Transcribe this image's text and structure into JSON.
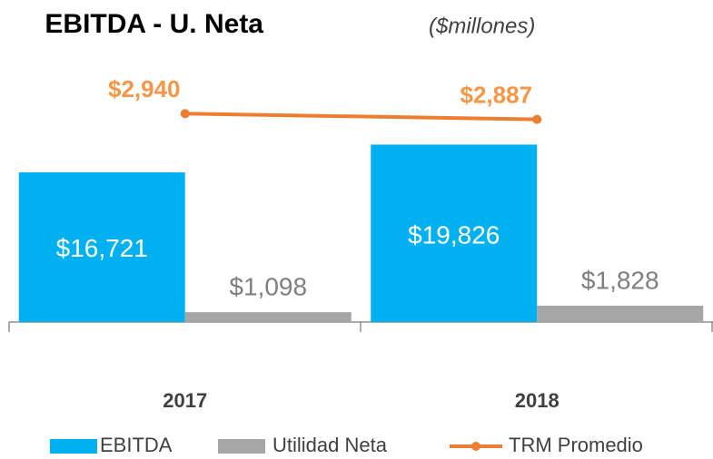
{
  "chart_data": {
    "type": "bar",
    "title": "EBITDA - U. Neta",
    "subtitle": "($millones)",
    "categories": [
      "2017",
      "2018"
    ],
    "series": [
      {
        "name": "EBITDA",
        "color": "#00b0f0",
        "values": [
          16721,
          19826
        ],
        "value_labels": [
          "$16,721",
          "$19,826"
        ]
      },
      {
        "name": "Utilidad Neta",
        "color": "#a6a6a6",
        "values": [
          1098,
          1828
        ],
        "value_labels": [
          "$1,098",
          "$1,828"
        ]
      },
      {
        "name": "TRM Promedio",
        "type": "line",
        "axis": "y2",
        "color": "#ed7d31",
        "values": [
          2940,
          2887
        ],
        "value_labels": [
          "$2,940",
          "$2,887"
        ]
      }
    ],
    "ylim": [
      0,
      30000
    ],
    "y2lim": [
      1000,
      3500
    ],
    "legend": "bottom"
  }
}
